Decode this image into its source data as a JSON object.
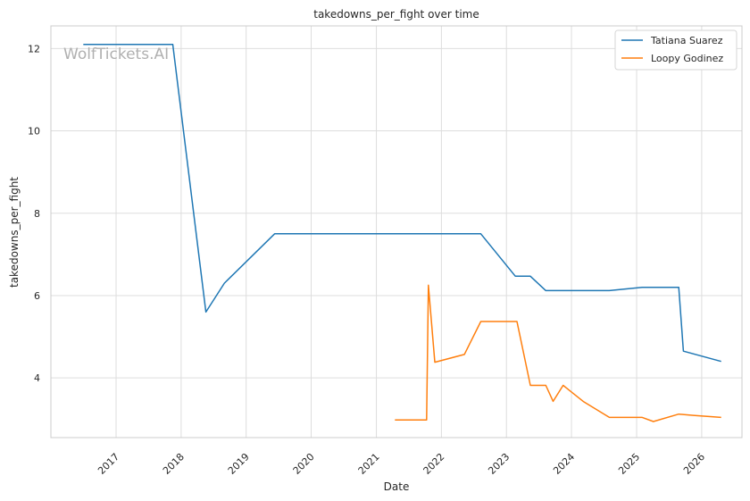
{
  "chart_data": {
    "type": "line",
    "title": "takedowns_per_fight over time",
    "xlabel": "Date",
    "ylabel": "takedowns_per_fight",
    "watermark": "WolfTickets.AI",
    "x_range": [
      "2016-01-01",
      "2026-08-15"
    ],
    "ylim": [
      2.55,
      12.55
    ],
    "x_ticks": [
      "2017",
      "2018",
      "2019",
      "2020",
      "2021",
      "2022",
      "2023",
      "2024",
      "2025",
      "2026"
    ],
    "y_ticks": [
      4,
      6,
      8,
      10,
      12
    ],
    "grid": true,
    "legend_position": "top-right",
    "series": [
      {
        "name": "Tatiana Suarez",
        "color": "#1f77b4",
        "points": [
          [
            "2016-07-01",
            12.1
          ],
          [
            "2017-11-15",
            12.1
          ],
          [
            "2018-05-20",
            5.6
          ],
          [
            "2018-09-01",
            6.3
          ],
          [
            "2019-06-10",
            7.5
          ],
          [
            "2022-08-10",
            7.5
          ],
          [
            "2023-02-20",
            6.47
          ],
          [
            "2023-05-15",
            6.47
          ],
          [
            "2023-08-10",
            6.12
          ],
          [
            "2024-08-01",
            6.12
          ],
          [
            "2025-02-01",
            6.2
          ],
          [
            "2025-08-25",
            6.2
          ],
          [
            "2025-09-20",
            4.65
          ],
          [
            "2026-04-20",
            4.4
          ]
        ]
      },
      {
        "name": "Loopy Godinez",
        "color": "#ff7f0e",
        "points": [
          [
            "2021-04-15",
            2.98
          ],
          [
            "2021-10-10",
            2.98
          ],
          [
            "2021-10-20",
            6.25
          ],
          [
            "2021-11-25",
            4.38
          ],
          [
            "2022-05-10",
            4.57
          ],
          [
            "2022-08-10",
            5.37
          ],
          [
            "2023-03-01",
            5.37
          ],
          [
            "2023-05-15",
            3.82
          ],
          [
            "2023-08-10",
            3.82
          ],
          [
            "2023-09-20",
            3.43
          ],
          [
            "2023-11-15",
            3.82
          ],
          [
            "2024-03-10",
            3.42
          ],
          [
            "2024-08-01",
            3.04
          ],
          [
            "2025-02-01",
            3.04
          ],
          [
            "2025-04-05",
            2.94
          ],
          [
            "2025-08-25",
            3.12
          ],
          [
            "2025-11-15",
            3.09
          ],
          [
            "2026-04-20",
            3.04
          ]
        ]
      }
    ]
  }
}
